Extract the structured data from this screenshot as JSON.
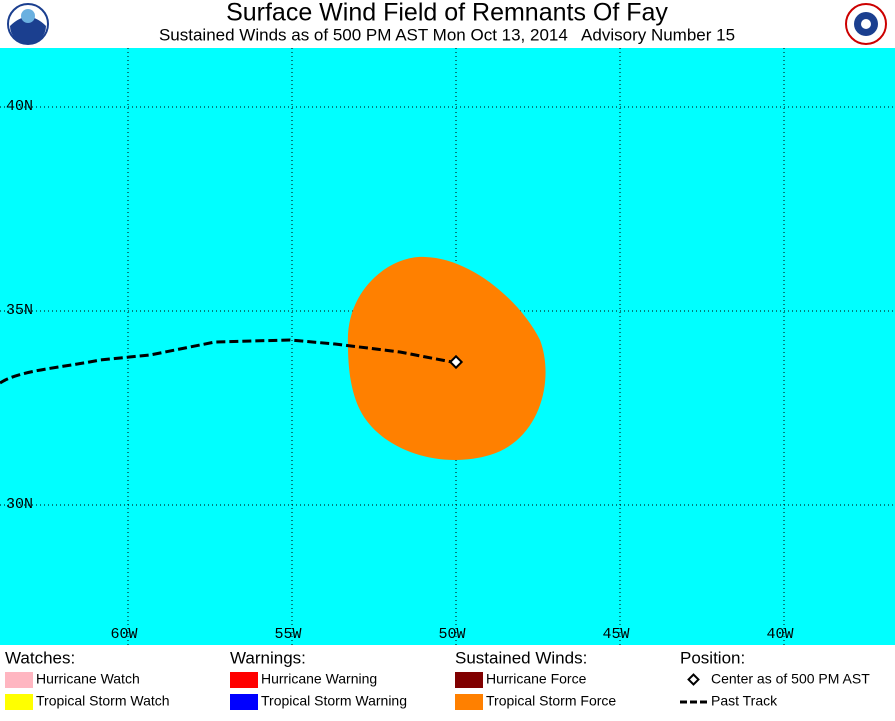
{
  "header": {
    "title": "Surface Wind Field of Remnants Of Fay",
    "subtitle": "Sustained Winds as of 500 PM AST Mon Oct 13, 2014   Advisory Number 15"
  },
  "map": {
    "lat_labels": [
      "40N",
      "35N",
      "30N"
    ],
    "lon_labels": [
      "60W",
      "55W",
      "50W",
      "45W",
      "40W"
    ]
  },
  "legend": {
    "groups": [
      {
        "title": "Watches:",
        "items": [
          "Hurricane Watch",
          "Tropical Storm Watch"
        ]
      },
      {
        "title": "Warnings:",
        "items": [
          "Hurricane Warning",
          "Tropical Storm Warning"
        ]
      },
      {
        "title": "Sustained Winds:",
        "items": [
          "Hurricane Force",
          "Tropical Storm Force"
        ]
      },
      {
        "title": "Position:",
        "items": [
          "Center as of 500 PM AST",
          "Past Track"
        ]
      }
    ]
  }
}
